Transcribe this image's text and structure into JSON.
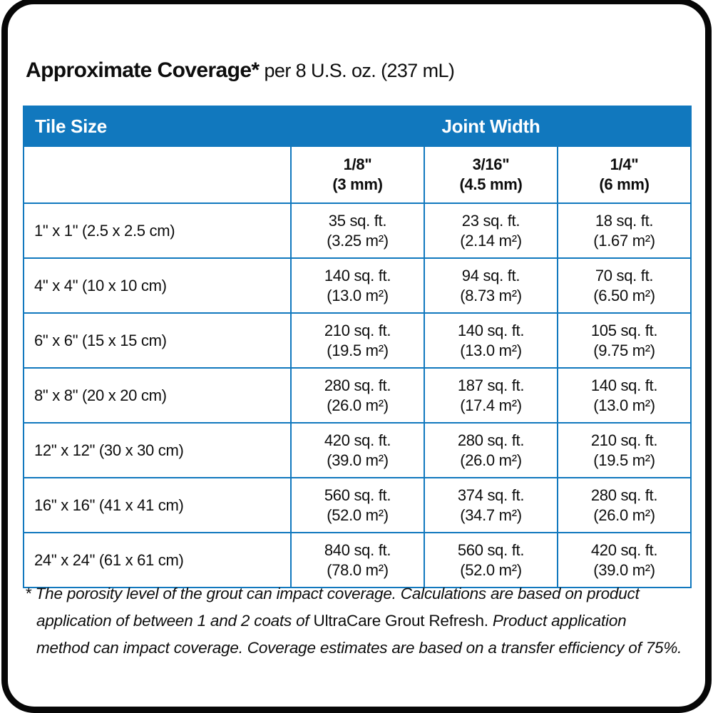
{
  "title": {
    "main": "Approximate Coverage*",
    "suffix": "per 8 U.S. oz. (237 mL)"
  },
  "colors": {
    "brand_blue": "#1178be",
    "frame_black": "#070707"
  },
  "table": {
    "tile_size_header": "Tile Size",
    "joint_width_header": "Joint Width",
    "joint_columns": [
      {
        "size": "1/8\"",
        "metric": "(3 mm)"
      },
      {
        "size": "3/16\"",
        "metric": "(4.5 mm)"
      },
      {
        "size": "1/4\"",
        "metric": "(6 mm)"
      }
    ],
    "rows": [
      {
        "tile": "1\" x 1\" (2.5 x 2.5 cm)",
        "c1a": "35 sq. ft.",
        "c1b": "(3.25 m²)",
        "c2a": "23 sq. ft.",
        "c2b": "(2.14 m²)",
        "c3a": "18 sq. ft.",
        "c3b": "(1.67 m²)"
      },
      {
        "tile": "4\" x 4\" (10 x 10 cm)",
        "c1a": "140 sq. ft.",
        "c1b": "(13.0 m²)",
        "c2a": "94 sq. ft.",
        "c2b": "(8.73 m²)",
        "c3a": "70 sq. ft.",
        "c3b": "(6.50 m²)"
      },
      {
        "tile": "6\" x 6\" (15 x 15 cm)",
        "c1a": "210 sq. ft.",
        "c1b": "(19.5 m²)",
        "c2a": "140 sq. ft.",
        "c2b": "(13.0 m²)",
        "c3a": "105 sq. ft.",
        "c3b": "(9.75 m²)"
      },
      {
        "tile": "8\" x 8\" (20 x 20 cm)",
        "c1a": "280 sq. ft.",
        "c1b": "(26.0 m²)",
        "c2a": "187 sq. ft.",
        "c2b": "(17.4 m²)",
        "c3a": "140 sq. ft.",
        "c3b": "(13.0 m²)"
      },
      {
        "tile": "12\" x 12\" (30 x 30 cm)",
        "c1a": "420 sq. ft.",
        "c1b": "(39.0 m²)",
        "c2a": "280 sq. ft.",
        "c2b": "(26.0 m²)",
        "c3a": "210 sq. ft.",
        "c3b": "(19.5 m²)"
      },
      {
        "tile": "16\" x 16\" (41 x 41 cm)",
        "c1a": "560 sq. ft.",
        "c1b": "(52.0 m²)",
        "c2a": "374 sq. ft.",
        "c2b": "(34.7 m²)",
        "c3a": "280 sq. ft.",
        "c3b": "(26.0 m²)"
      },
      {
        "tile": "24\" x 24\" (61 x 61 cm)",
        "c1a": "840 sq. ft.",
        "c1b": "(78.0 m²)",
        "c2a": "560 sq. ft.",
        "c2b": "(52.0 m²)",
        "c3a": "420 sq. ft.",
        "c3b": "(39.0 m²)"
      }
    ]
  },
  "footnote": {
    "italic_1": "* The porosity level of the grout can impact coverage. Calculations are based on product\napplication of between 1 and 2 coats of ",
    "product_name": "UltraCare Grout Refresh.",
    "italic_2": " Product application\nmethod can impact coverage. Coverage estimates are based on a transfer efficiency of 75%."
  }
}
